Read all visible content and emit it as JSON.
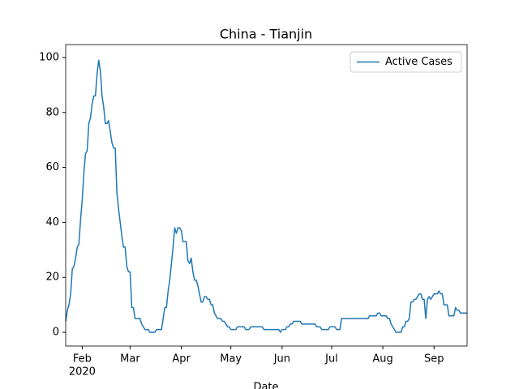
{
  "chart_data": {
    "type": "line",
    "title": "China - Tianjin",
    "xlabel": "Date",
    "series": [
      {
        "name": "Active Cases",
        "color": "#1f77b4",
        "values": [
          4,
          8,
          10,
          14,
          23,
          24,
          27,
          31,
          32,
          41,
          48,
          58,
          65,
          66,
          76,
          78,
          83,
          86,
          86,
          94,
          99,
          95,
          86,
          82,
          76,
          76,
          77,
          73,
          69,
          67,
          67,
          51,
          45,
          40,
          35,
          31,
          31,
          24,
          22,
          22,
          9,
          9,
          5,
          5,
          5,
          5,
          3,
          2,
          1,
          1,
          1,
          0,
          0,
          0,
          0,
          1,
          1,
          1,
          1,
          5,
          9,
          9,
          15,
          19,
          25,
          31,
          38,
          36,
          38,
          38,
          37,
          33,
          33,
          33,
          26,
          25,
          27,
          22,
          19,
          19,
          17,
          14,
          11,
          11,
          13,
          13,
          12,
          12,
          10,
          10,
          7,
          6,
          5,
          5,
          5,
          4,
          4,
          3,
          2,
          2,
          1,
          1,
          1,
          1,
          2,
          2,
          2,
          2,
          2,
          1,
          1,
          1,
          2,
          2,
          2,
          2,
          2,
          2,
          2,
          2,
          1,
          1,
          1,
          1,
          1,
          1,
          1,
          1,
          1,
          1,
          0,
          1,
          1,
          1,
          2,
          2,
          3,
          3,
          4,
          4,
          4,
          4,
          4,
          3,
          3,
          3,
          3,
          3,
          3,
          3,
          3,
          3,
          2,
          2,
          2,
          1,
          1,
          1,
          1,
          1,
          2,
          2,
          2,
          2,
          1,
          1,
          1,
          5,
          5,
          5,
          5,
          5,
          5,
          5,
          5,
          5,
          5,
          5,
          5,
          5,
          5,
          5,
          5,
          5,
          6,
          6,
          6,
          6,
          6,
          7,
          7,
          6,
          6,
          6,
          6,
          5,
          5,
          3,
          2,
          1,
          0,
          0,
          0,
          0,
          2,
          2,
          4,
          4,
          5,
          11,
          11,
          12,
          12,
          13,
          14,
          14,
          12,
          12,
          5,
          12,
          13,
          12,
          13,
          14,
          14,
          14,
          15,
          14,
          14,
          10,
          10,
          10,
          6,
          6,
          6,
          6,
          9,
          8,
          8,
          7,
          7,
          7,
          7,
          7
        ]
      }
    ],
    "xlim": [
      0,
      243
    ],
    "xticks": [
      {
        "value": 10,
        "label": "Feb"
      },
      {
        "value": 39,
        "label": "Mar"
      },
      {
        "value": 70,
        "label": "Apr"
      },
      {
        "value": 100,
        "label": "May"
      },
      {
        "value": 131,
        "label": "Jun"
      },
      {
        "value": 161,
        "label": "Jul"
      },
      {
        "value": 192,
        "label": "Aug"
      },
      {
        "value": 223,
        "label": "Sep"
      }
    ],
    "x_year_label": "2020",
    "ylim": [
      -5,
      104.7
    ],
    "yticks": [
      0,
      20,
      40,
      60,
      80,
      100
    ],
    "legend": "upper right"
  }
}
